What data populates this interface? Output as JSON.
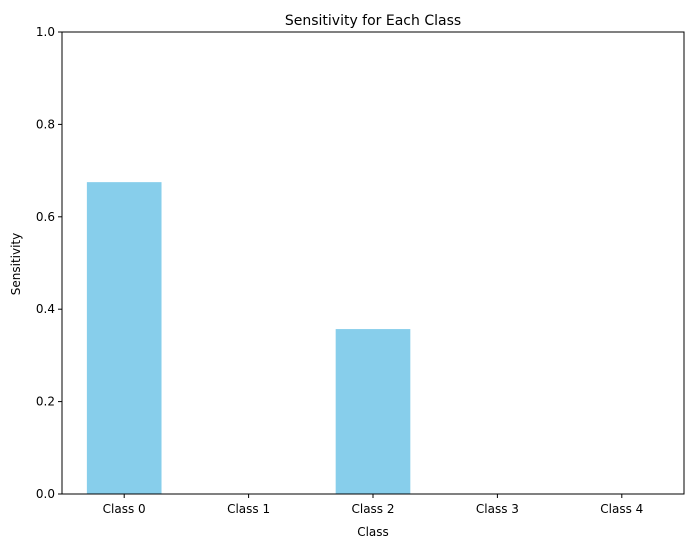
{
  "chart_data": {
    "type": "bar",
    "title": "Sensitivity for Each Class",
    "xlabel": "Class",
    "ylabel": "Sensitivity",
    "categories": [
      "Class 0",
      "Class 1",
      "Class 2",
      "Class 3",
      "Class 4"
    ],
    "values": [
      0.675,
      0.0,
      0.357,
      0.0,
      0.0
    ],
    "ylim": [
      0,
      1
    ],
    "yticks": [
      0.0,
      0.2,
      0.4,
      0.6,
      0.8,
      1.0
    ],
    "ytick_labels": [
      "0.0",
      "0.2",
      "0.4",
      "0.6",
      "0.8",
      "1.0"
    ],
    "grid": false,
    "bar_color": "#87ceeb"
  }
}
